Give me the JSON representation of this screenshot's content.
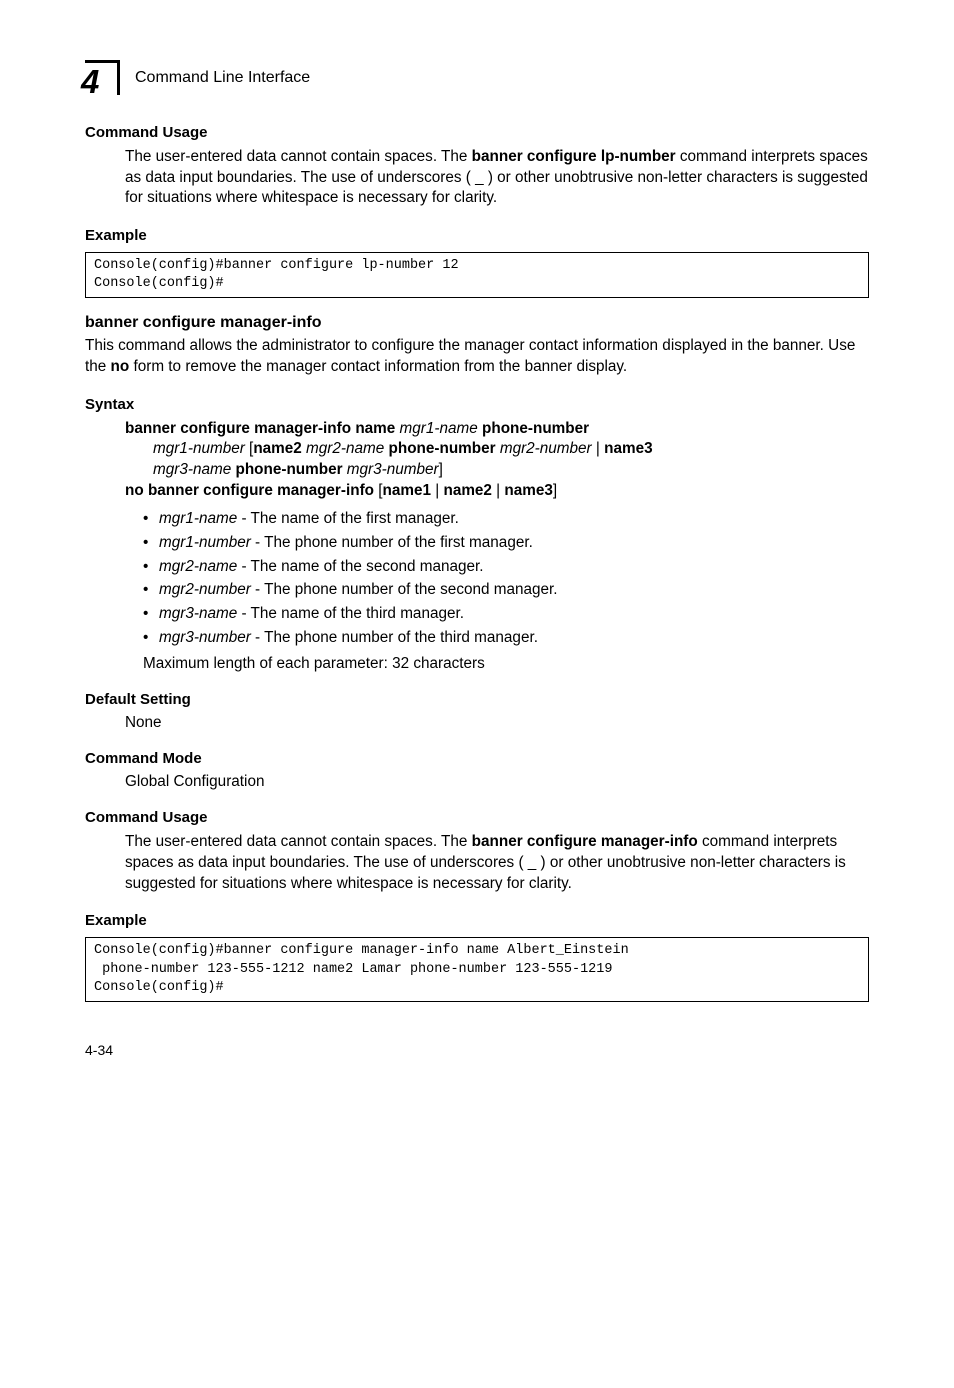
{
  "header": {
    "chapter_number": "4",
    "chapter_title": "Command Line Interface"
  },
  "sections": {
    "command_usage_1": {
      "heading": "Command Usage",
      "body_parts": {
        "pre1": "The user-entered data cannot contain spaces. The ",
        "bold1": "banner configure lp-number",
        "post1": " command interprets spaces as data input boundaries. The use of underscores ( _ ) or other unobtrusive non-letter characters is suggested for situations where whitespace is necessary for clarity."
      }
    },
    "example_1": {
      "heading": "Example",
      "code": "Console(config)#banner configure lp-number 12\nConsole(config)#"
    },
    "cmd": {
      "heading": "banner configure manager-info",
      "desc_parts": {
        "pre": "This command allows the administrator to configure the manager contact information displayed in the banner. Use the ",
        "bold": "no",
        "post": " form to remove the manager contact information from the banner display."
      }
    },
    "syntax": {
      "heading": "Syntax",
      "line1": {
        "b1": "banner configure manager-info name ",
        "i1": "mgr1-name",
        "b2": " phone-number"
      },
      "line2": {
        "i1": "mgr1-number",
        "p1": " [",
        "b1": "name2 ",
        "i2": "mgr2-name",
        "b2": " phone-number ",
        "i3": "mgr2-number",
        "p2": " | ",
        "b3": "name3"
      },
      "line3": {
        "i1": "mgr3-name",
        "b1": " phone-number ",
        "i2": "mgr3-number",
        "p1": "]"
      },
      "line4": {
        "b1": "no banner configure manager-info",
        "p1": " [",
        "b2": "name1",
        "p2": " | ",
        "b3": "name2",
        "p3": " | ",
        "b4": "name3",
        "p4": "]"
      },
      "params": [
        {
          "name": "mgr1-name",
          "desc": " - The name of the first manager."
        },
        {
          "name": "mgr1-number",
          "desc": " - The phone number of the first manager."
        },
        {
          "name": "mgr2-name",
          "desc": " - The name of the second manager."
        },
        {
          "name": "mgr2-number",
          "desc": " - The phone number of the second manager."
        },
        {
          "name": "mgr3-name",
          "desc": " - The name of the third manager."
        },
        {
          "name": "mgr3-number",
          "desc": " - The phone number of the third manager."
        }
      ],
      "max_length": "Maximum length of each parameter: 32 characters"
    },
    "default_setting": {
      "heading": "Default Setting",
      "value": "None"
    },
    "command_mode": {
      "heading": "Command Mode",
      "value": "Global Configuration"
    },
    "command_usage_2": {
      "heading": "Command Usage",
      "body_parts": {
        "pre1": "The user-entered data cannot contain spaces. The ",
        "bold1": "banner configure manager-info",
        "post1": " command interprets spaces as data input boundaries. The use of underscores ( _ ) or other unobtrusive non-letter characters is suggested for situations where whitespace is necessary for clarity."
      }
    },
    "example_2": {
      "heading": "Example",
      "code": "Console(config)#banner configure manager-info name Albert_Einstein \n phone-number 123-555-1212 name2 Lamar phone-number 123-555-1219\nConsole(config)#"
    }
  },
  "footer": {
    "page_number": "4-34"
  }
}
